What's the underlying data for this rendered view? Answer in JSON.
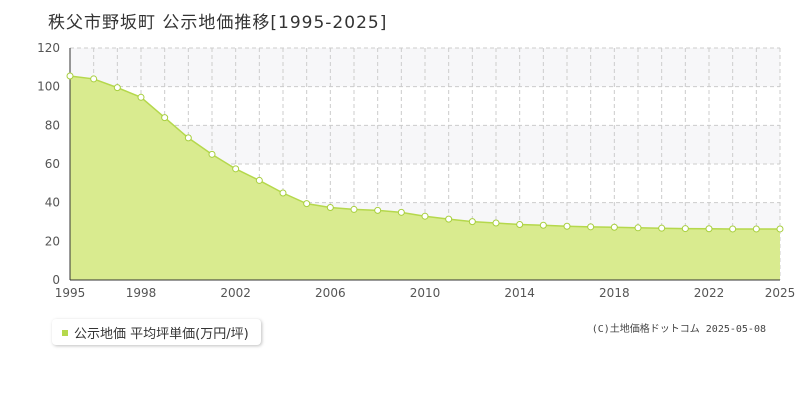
{
  "title": "秩父市野坂町 公示地価推移[1995-2025]",
  "credit": "(C)土地価格ドットコム 2025-05-08",
  "chart_data": {
    "type": "area",
    "title": "秩父市野坂町 公示地価推移[1995-2025]",
    "xlabel": "",
    "ylabel": "",
    "xlim": [
      1995,
      2025
    ],
    "ylim": [
      0,
      120
    ],
    "x_ticks": [
      "1995",
      "1998",
      "2002",
      "2006",
      "2010",
      "2014",
      "2018",
      "2022",
      "2025"
    ],
    "y_ticks": [
      "0",
      "20",
      "40",
      "60",
      "80",
      "100",
      "120"
    ],
    "grid": true,
    "legend_position": "bottom-left",
    "colors": {
      "fill": "#d9eb8f",
      "line": "#b5d84c",
      "marker_edge": "#a8cf3f",
      "band": "#f7f7f9",
      "grid": "#cccccc"
    },
    "series": [
      {
        "name": "公示地価 平均坪単価(万円/坪)",
        "x": [
          1995,
          1996,
          1997,
          1998,
          1999,
          2000,
          2001,
          2002,
          2003,
          2004,
          2005,
          2006,
          2007,
          2008,
          2009,
          2010,
          2011,
          2012,
          2013,
          2014,
          2015,
          2016,
          2017,
          2018,
          2019,
          2020,
          2021,
          2022,
          2023,
          2024,
          2025
        ],
        "values": [
          105.5,
          104,
          99.5,
          94.5,
          84,
          73.5,
          65,
          57.5,
          51.5,
          45,
          39.5,
          37.5,
          36.5,
          36,
          35,
          33,
          31.5,
          30.2,
          29.5,
          28.7,
          28.3,
          27.8,
          27.5,
          27.3,
          27,
          26.8,
          26.6,
          26.5,
          26.4,
          26.4,
          26.4
        ]
      }
    ]
  }
}
